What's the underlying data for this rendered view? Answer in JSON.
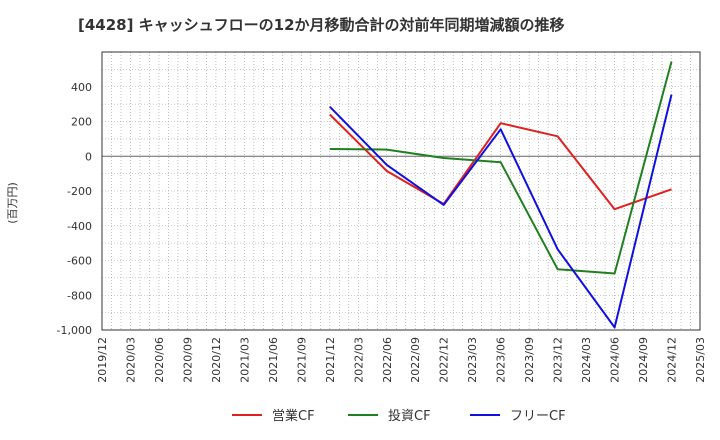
{
  "chart_data": {
    "type": "line",
    "title": "[4428]  キャッシュフローの12か月移動合計の対前年同期増減額の推移",
    "ylabel": "(百万円)",
    "xlabel": "",
    "ylim": [
      -1000,
      600
    ],
    "yticks": [
      400,
      200,
      0,
      -200,
      -400,
      -600,
      -800,
      -1000
    ],
    "ytick_labels": [
      "400",
      "200",
      "0",
      "-200",
      "-400",
      "-600",
      "-800",
      "-1,000"
    ],
    "categories": [
      "2019/12",
      "2020/03",
      "2020/06",
      "2020/09",
      "2020/12",
      "2021/03",
      "2021/06",
      "2021/09",
      "2021/12",
      "2022/03",
      "2022/06",
      "2022/09",
      "2022/12",
      "2023/03",
      "2023/06",
      "2023/09",
      "2023/12",
      "2024/03",
      "2024/06",
      "2024/09",
      "2024/12",
      "2025/03"
    ],
    "series": [
      {
        "name": "営業CF",
        "color": "#e02020",
        "points": [
          [
            "2021/12",
            240
          ],
          [
            "2022/06",
            -85
          ],
          [
            "2022/12",
            -275
          ],
          [
            "2023/06",
            190
          ],
          [
            "2023/12",
            115
          ],
          [
            "2024/06",
            -305
          ],
          [
            "2024/12",
            -190
          ]
        ]
      },
      {
        "name": "投資CF",
        "color": "#208020",
        "points": [
          [
            "2021/12",
            42
          ],
          [
            "2022/06",
            38
          ],
          [
            "2022/12",
            -10
          ],
          [
            "2023/06",
            -35
          ],
          [
            "2023/12",
            -650
          ],
          [
            "2024/06",
            -675
          ],
          [
            "2024/12",
            545
          ]
        ]
      },
      {
        "name": "フリーCF",
        "color": "#1010e0",
        "points": [
          [
            "2021/12",
            285
          ],
          [
            "2022/06",
            -50
          ],
          [
            "2022/12",
            -280
          ],
          [
            "2023/06",
            155
          ],
          [
            "2023/12",
            -535
          ],
          [
            "2024/06",
            -985
          ],
          [
            "2024/12",
            355
          ]
        ]
      }
    ],
    "grid": true,
    "legend": "bottom-center"
  }
}
